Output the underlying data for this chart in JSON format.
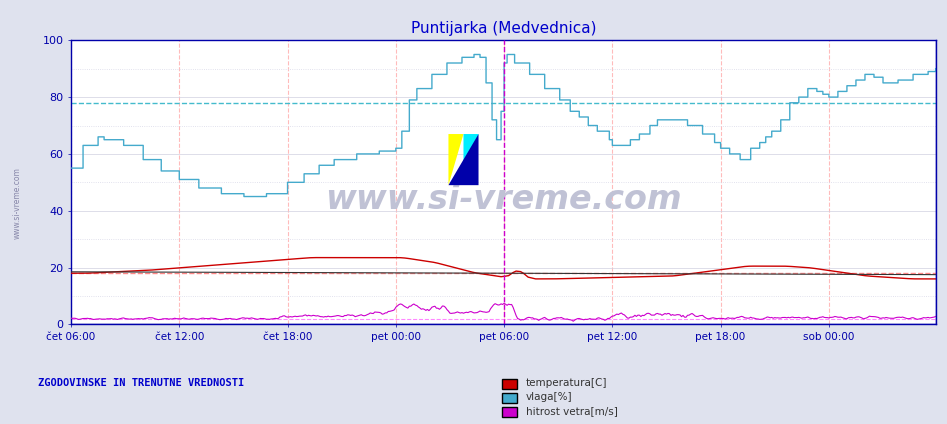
{
  "title": "Puntijarka (Medvednica)",
  "title_color": "#0000cc",
  "bg_color": "#dfe2ee",
  "plot_bg_color": "#ffffff",
  "xlabel_ticks": [
    "čet 06:00",
    "čet 12:00",
    "čet 18:00",
    "pet 00:00",
    "pet 06:00",
    "pet 12:00",
    "pet 18:00",
    "sob 00:00"
  ],
  "ylabel_values": [
    0,
    20,
    40,
    60,
    80,
    100
  ],
  "ylim": [
    0,
    100
  ],
  "avg_temp": 18.2,
  "avg_vlaga": 78.0,
  "avg_veter": 2.0,
  "avg_black": 18.0,
  "legend_text": "ZGODOVINSKE IN TRENUTNE VREDNOSTI",
  "legend_color": "#0000cc",
  "watermark": "www.si-vreme.com",
  "watermark_color": "#c0c2d5",
  "temp_color": "#cc0000",
  "vlaga_color": "#44aacc",
  "veter_color": "#cc00cc",
  "black_color": "#333333",
  "avg_temp_color": "#ff8888",
  "avg_vlaga_color": "#44bbcc",
  "avg_veter_color": "#ff88ff",
  "grid_v_color": "#ffbbbb",
  "grid_h_minor_color": "#e0e0f0",
  "tick_label_color": "#0000aa",
  "axis_color": "#0000aa",
  "n_points": 576,
  "logo_yellow": "#ffff00",
  "logo_cyan": "#00eeff",
  "logo_blue": "#0000aa"
}
